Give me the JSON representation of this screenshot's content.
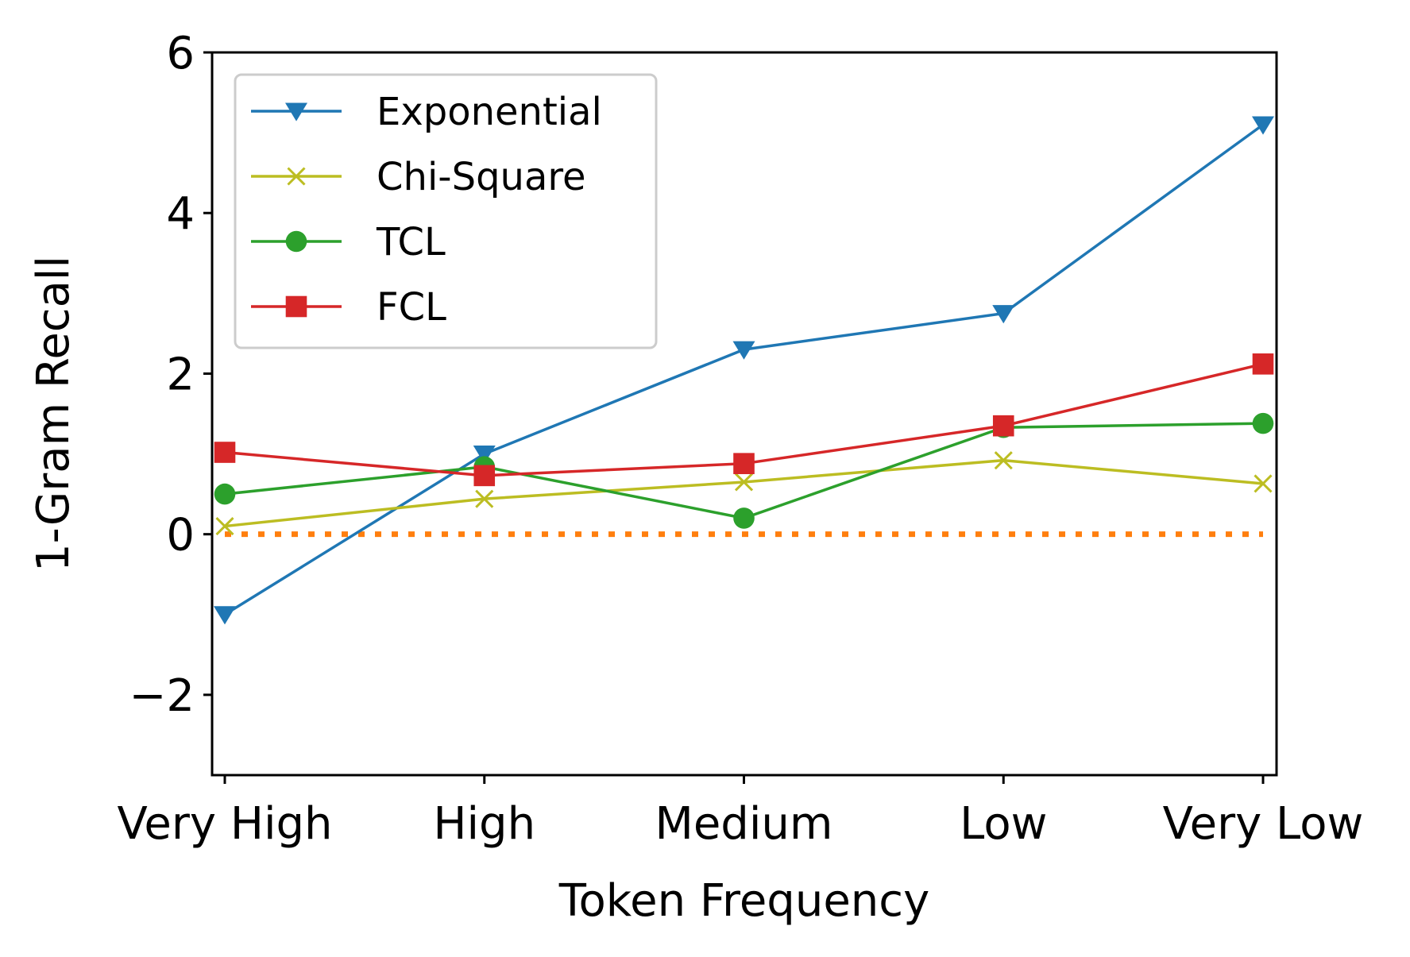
{
  "chart_data": {
    "type": "line",
    "categories": [
      "Very High",
      "High",
      "Medium",
      "Low",
      "Very Low"
    ],
    "xlabel": "Token Frequency",
    "ylabel": "1-Gram Recall",
    "ylim": [
      -3,
      6
    ],
    "yticks": [
      -2,
      0,
      2,
      4,
      6
    ],
    "ytick_labels": [
      "−2",
      "0",
      "2",
      "4",
      "6"
    ],
    "grid": false,
    "legend_position": "upper-left",
    "series": [
      {
        "name": "Exponential",
        "color": "#1f77b4",
        "marker": "triangle-down",
        "values": [
          -1.0,
          1.0,
          2.3,
          2.75,
          5.1
        ]
      },
      {
        "name": "Chi-Square",
        "color": "#bcbd22",
        "marker": "x",
        "values": [
          0.1,
          0.44,
          0.65,
          0.92,
          0.63
        ]
      },
      {
        "name": "TCL",
        "color": "#2ca02c",
        "marker": "circle",
        "values": [
          0.5,
          0.84,
          0.2,
          1.33,
          1.38
        ]
      },
      {
        "name": "FCL",
        "color": "#d62728",
        "marker": "square",
        "values": [
          1.02,
          0.73,
          0.88,
          1.35,
          2.12
        ]
      }
    ],
    "baseline": {
      "value": 0,
      "color": "#ff7f0e",
      "style": "dotted"
    }
  }
}
